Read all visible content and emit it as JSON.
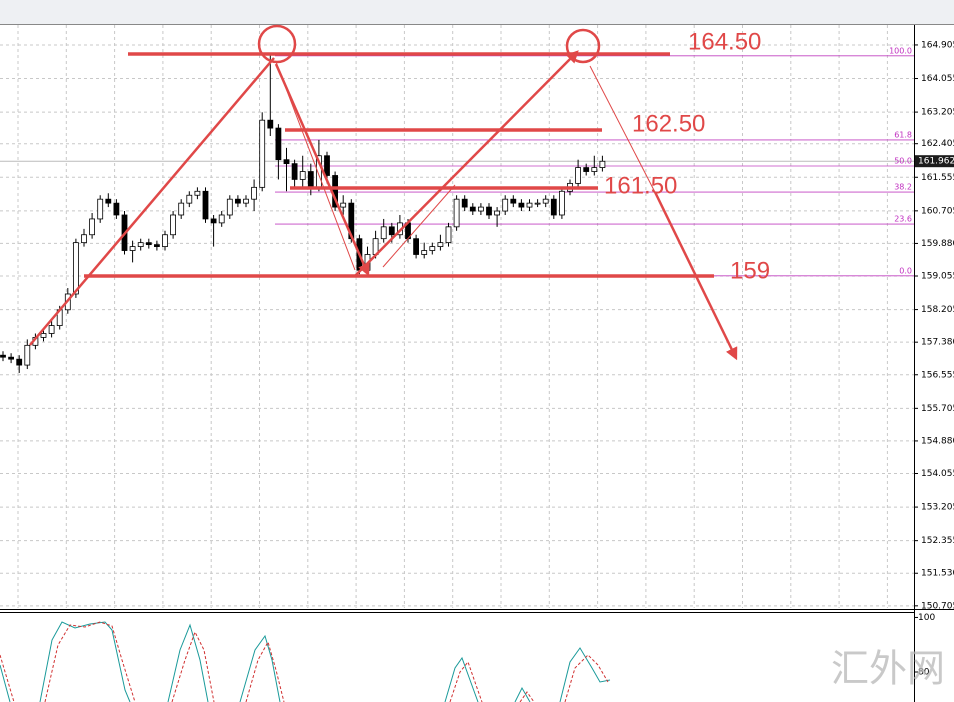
{
  "chart_data": {
    "type": "candlestick",
    "up_color": "#ffffff",
    "down_color": "#000000",
    "open": [
      157.05,
      157.0,
      156.95,
      156.8,
      157.3,
      157.5,
      157.6,
      157.8,
      158.2,
      158.6,
      159.9,
      160.1,
      160.5,
      161.0,
      160.9,
      160.6,
      159.7,
      159.8,
      159.9,
      159.85,
      159.8,
      160.1,
      160.6,
      160.9,
      161.1,
      161.2,
      160.5,
      160.4,
      160.6,
      161.0,
      160.9,
      161.0,
      161.3,
      163.0,
      162.8,
      162.0,
      161.9,
      161.5,
      161.7,
      161.3,
      162.1,
      161.6,
      160.8,
      160.9,
      160.0,
      159.2,
      159.6,
      160.0,
      160.3,
      160.1,
      160.4,
      160.0,
      159.6,
      159.7,
      159.8,
      159.9,
      160.3,
      161.0,
      160.8,
      160.7,
      160.8,
      160.6,
      160.7,
      161.0,
      160.9,
      160.8,
      160.9,
      160.9,
      161.0,
      160.6,
      161.2,
      161.4,
      161.8,
      161.7,
      161.8
    ],
    "high": [
      157.15,
      157.1,
      157.05,
      157.45,
      157.6,
      157.7,
      157.95,
      158.3,
      158.75,
      160.0,
      160.25,
      160.65,
      161.1,
      161.15,
      161.0,
      160.7,
      159.95,
      160.0,
      160.0,
      159.95,
      160.2,
      160.7,
      161.0,
      161.2,
      161.3,
      161.3,
      160.6,
      160.7,
      161.1,
      161.1,
      161.1,
      161.5,
      163.2,
      164.65,
      162.9,
      162.3,
      162.0,
      162.1,
      161.9,
      162.5,
      162.2,
      161.7,
      161.1,
      161.0,
      160.1,
      159.8,
      160.2,
      160.5,
      160.4,
      160.6,
      160.5,
      160.1,
      159.9,
      159.9,
      160.1,
      160.4,
      161.1,
      161.1,
      160.9,
      160.9,
      160.9,
      160.8,
      161.1,
      161.1,
      161.0,
      161.0,
      161.0,
      161.1,
      161.1,
      161.3,
      161.5,
      162.0,
      161.9,
      162.1,
      162.1
    ],
    "low": [
      156.9,
      156.85,
      156.6,
      156.7,
      157.2,
      157.4,
      157.5,
      157.7,
      158.1,
      158.5,
      159.8,
      160.0,
      160.4,
      160.8,
      160.5,
      159.6,
      159.4,
      159.7,
      159.75,
      159.7,
      159.7,
      160.0,
      160.5,
      160.8,
      161.0,
      160.4,
      159.8,
      160.3,
      160.5,
      160.8,
      160.8,
      160.7,
      161.2,
      162.6,
      161.5,
      161.2,
      161.3,
      161.3,
      161.1,
      161.2,
      161.4,
      160.7,
      160.6,
      159.9,
      159.1,
      159.1,
      159.5,
      159.9,
      159.9,
      160.0,
      159.9,
      159.5,
      159.5,
      159.6,
      159.7,
      159.8,
      160.2,
      160.7,
      160.6,
      160.6,
      160.5,
      160.3,
      160.6,
      160.8,
      160.7,
      160.7,
      160.8,
      160.8,
      160.5,
      160.5,
      161.1,
      161.3,
      161.6,
      161.6,
      161.7
    ],
    "close": [
      157.0,
      156.95,
      156.8,
      157.3,
      157.5,
      157.6,
      157.8,
      158.2,
      158.6,
      159.9,
      160.1,
      160.5,
      161.0,
      160.9,
      160.6,
      159.7,
      159.8,
      159.9,
      159.85,
      159.8,
      160.1,
      160.6,
      160.9,
      161.1,
      161.2,
      160.5,
      160.4,
      160.6,
      161.0,
      160.9,
      161.0,
      161.3,
      163.0,
      162.8,
      162.0,
      161.9,
      161.5,
      161.7,
      161.3,
      162.1,
      161.6,
      160.8,
      160.9,
      160.0,
      159.2,
      159.6,
      160.0,
      160.3,
      160.1,
      160.4,
      160.0,
      159.6,
      159.7,
      159.8,
      159.9,
      160.3,
      161.0,
      160.8,
      160.7,
      160.8,
      160.6,
      160.7,
      161.0,
      160.9,
      160.8,
      160.9,
      160.9,
      161.0,
      160.6,
      161.2,
      161.4,
      161.8,
      161.7,
      161.8,
      161.96
    ],
    "ylim": [
      150.65,
      165.41
    ],
    "yticks": [
      164.905,
      164.055,
      163.205,
      162.405,
      161.555,
      160.705,
      {
        "value": 159.88,
        "label": "159.880"
      },
      159.055,
      158.205,
      {
        "value": 157.38,
        "label": "157.380"
      },
      156.555,
      155.705,
      {
        "value": 154.88,
        "label": "154.880"
      },
      154.055,
      153.205,
      152.355,
      {
        "value": 151.53,
        "label": "151.530"
      },
      150.705
    ],
    "grid": true,
    "last_price": 161.962,
    "fib_color": "#c040c0",
    "fib_levels": [
      {
        "label": "100.0",
        "price": 164.63
      },
      {
        "label": "61.8",
        "price": 162.5
      },
      {
        "label": "50.0",
        "price": 161.84
      },
      {
        "label": "38.2",
        "price": 161.18
      },
      {
        "label": "23.6",
        "price": 160.37
      },
      {
        "label": "0.0",
        "price": 159.06
      }
    ],
    "annotations": [
      "164.50",
      "162.50",
      "161.50",
      "159"
    ],
    "oscillator": {
      "ylim": [
        69,
        102
      ],
      "yticks": [
        100,
        80
      ]
    }
  },
  "watermark": "汇外网"
}
